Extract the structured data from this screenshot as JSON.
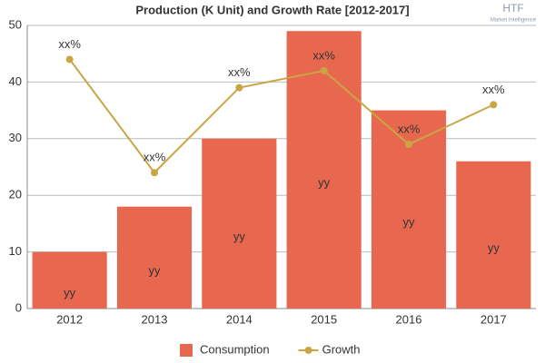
{
  "chart_data": {
    "type": "bar",
    "title": "Production (K Unit) and Growth Rate [2012-2017]",
    "watermark": [
      "HTF",
      "Market Intelligence"
    ],
    "categories": [
      "2012",
      "2013",
      "2014",
      "2015",
      "2016",
      "2017"
    ],
    "series": [
      {
        "name": "Consumption",
        "type": "bar",
        "color": "#e8684f",
        "values": [
          10,
          18,
          30,
          49,
          35,
          26
        ],
        "value_labels": [
          "yy",
          "yy",
          "yy",
          "yy",
          "yy",
          "yy"
        ]
      },
      {
        "name": "Growth",
        "type": "line",
        "color": "#c9a544",
        "values": [
          44,
          24,
          39,
          42,
          29,
          36
        ],
        "value_labels": [
          "xx%",
          "xx%",
          "xx%",
          "xx%",
          "xx%",
          "xx%"
        ]
      }
    ],
    "ylim": [
      0,
      50
    ],
    "yticks": [
      0,
      10,
      20,
      30,
      40,
      50
    ],
    "grid": true,
    "legend": "bottom"
  }
}
